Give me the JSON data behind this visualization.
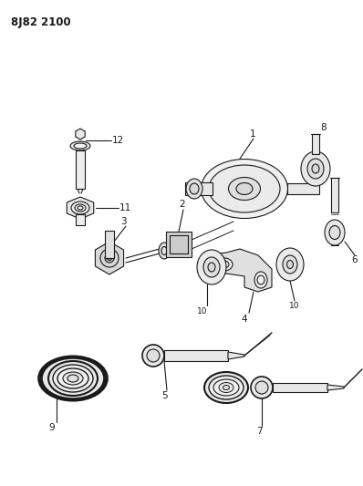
{
  "title": "8J82 2100",
  "bg_color": "#ffffff",
  "line_color": "#1a1a1a",
  "fig_width": 3.98,
  "fig_height": 5.33,
  "dpi": 100
}
